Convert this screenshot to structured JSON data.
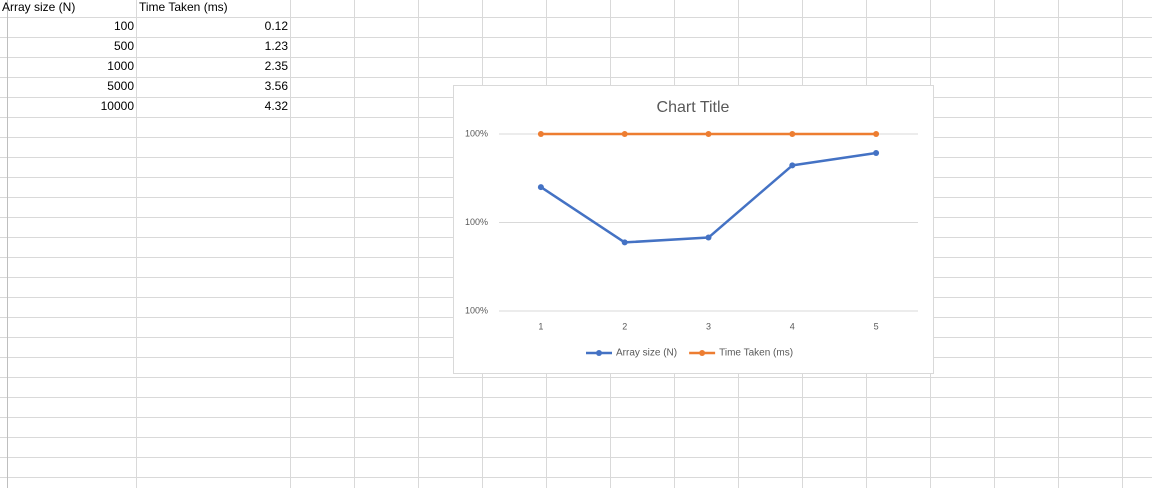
{
  "sheet": {
    "columns": [
      "Array size (N)",
      "Time Taken (ms)"
    ],
    "rows": [
      [
        "100",
        "0.12"
      ],
      [
        "500",
        "1.23"
      ],
      [
        "1000",
        "2.35"
      ],
      [
        "5000",
        "3.56"
      ],
      [
        "10000",
        "4.32"
      ]
    ]
  },
  "chart_data": {
    "type": "line",
    "stacked": "percent",
    "title": "Chart Title",
    "categories": [
      "1",
      "2",
      "3",
      "4",
      "5"
    ],
    "series": [
      {
        "name": "Array size (N)",
        "color": "#4472c4",
        "values": [
          99.88,
          99.755,
          99.766,
          99.929,
          99.957
        ]
      },
      {
        "name": "Time Taken (ms)",
        "color": "#ed7d31",
        "values": [
          0.12,
          0.245,
          0.234,
          0.071,
          0.043
        ]
      }
    ],
    "ylim": [
      99.6,
      100
    ],
    "yticks": [
      {
        "value": 99.6,
        "label": "100%"
      },
      {
        "value": 99.8,
        "label": "100%"
      },
      {
        "value": 100,
        "label": "100%"
      }
    ],
    "grid": true,
    "legend": "bottom"
  }
}
